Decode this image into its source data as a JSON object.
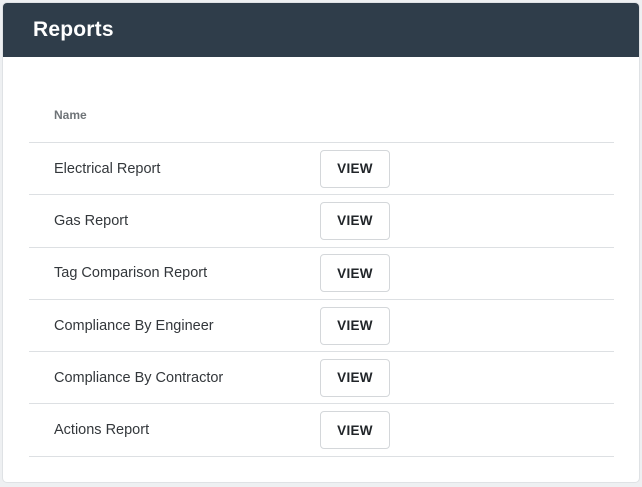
{
  "header": {
    "title": "Reports"
  },
  "table": {
    "columns": [
      "Name",
      ""
    ],
    "rows": [
      {
        "name": "Electrical Report",
        "action": "VIEW"
      },
      {
        "name": "Gas Report",
        "action": "VIEW"
      },
      {
        "name": "Tag Comparison Report",
        "action": "VIEW"
      },
      {
        "name": "Compliance By Engineer",
        "action": "VIEW"
      },
      {
        "name": "Compliance By Contractor",
        "action": "VIEW"
      },
      {
        "name": "Actions Report",
        "action": "VIEW"
      }
    ]
  },
  "colors": {
    "header_bg": "#2f3d4a",
    "header_text": "#ffffff",
    "row_divider": "#dde0e3"
  }
}
